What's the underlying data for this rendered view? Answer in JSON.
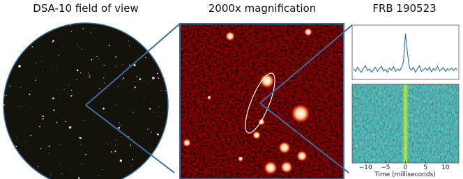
{
  "panels": [
    {
      "title": "DSA-10 field of view"
    },
    {
      "title": "2000x magnification"
    },
    {
      "title": "FRB 190523"
    }
  ],
  "chart_data": {
    "type": "line",
    "xlabel": "Time (milliseconds)",
    "color": "#2b6ea8",
    "xlim": [
      -13,
      13
    ],
    "ylim": [
      0,
      1.1
    ],
    "xticks": [
      {
        "value": -10,
        "label": "−10"
      },
      {
        "value": -5,
        "label": "−5"
      },
      0,
      5,
      10
    ],
    "x": [
      -13,
      -12.5,
      -12,
      -11.5,
      -11,
      -10.5,
      -10,
      -9.5,
      -9,
      -8.5,
      -8,
      -7.5,
      -7,
      -6.5,
      -6,
      -5.5,
      -5,
      -4.5,
      -4,
      -3.5,
      -3,
      -2.5,
      -2,
      -1.5,
      -1,
      -0.5,
      0,
      0.5,
      1,
      1.5,
      2,
      2.5,
      3,
      3.5,
      4,
      4.5,
      5,
      5.5,
      6,
      6.5,
      7,
      7.5,
      8,
      8.5,
      9,
      9.5,
      10,
      10.5,
      11,
      11.5,
      12,
      12.5,
      13
    ],
    "values": [
      0.18,
      0.12,
      0.22,
      0.15,
      0.1,
      0.2,
      0.25,
      0.14,
      0.18,
      0.1,
      0.16,
      0.22,
      0.12,
      0.19,
      0.24,
      0.13,
      0.17,
      0.1,
      0.2,
      0.15,
      0.23,
      0.12,
      0.18,
      0.14,
      0.2,
      0.35,
      1.0,
      0.55,
      0.2,
      0.15,
      0.22,
      0.1,
      0.18,
      0.25,
      0.12,
      0.16,
      0.2,
      0.14,
      0.22,
      0.11,
      0.19,
      0.15,
      0.24,
      0.13,
      0.17,
      0.21,
      0.12,
      0.18,
      0.15,
      0.2,
      0.14,
      0.19,
      0.16
    ]
  }
}
